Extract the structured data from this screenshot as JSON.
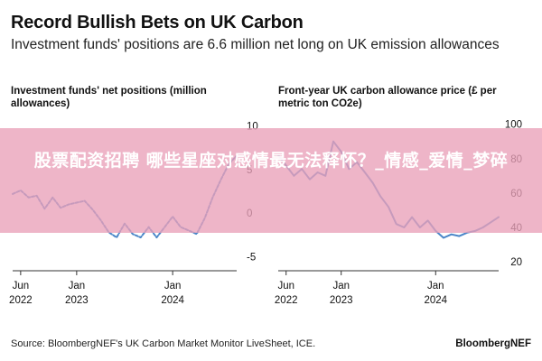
{
  "header": {
    "title": "Record Bullish Bets on UK Carbon",
    "subtitle": "Investment funds' positions are 6.6 million net long on UK emission allowances"
  },
  "banner": {
    "text": "股票配资招聘 哪些星座对感情最无法释怀？_情感_爱情_梦碎"
  },
  "footer": {
    "source": "Source: BloombergNEF's UK Carbon Market Monitor LiveSheet, ICE.",
    "brand": "BloombergNEF"
  },
  "colors": {
    "line": "#4a86c8",
    "axis": "#333333",
    "banner": "#e9a0b8"
  },
  "chart_data": [
    {
      "type": "line",
      "title": "Investment funds' net positions (million allowances)",
      "y_ticks": [
        10,
        5,
        0,
        -5
      ],
      "ylim": [
        -6,
        11
      ],
      "x_ticks": [
        {
          "line1": "Jun",
          "line2": "2022",
          "x": "2022-06"
        },
        {
          "line1": "Jan",
          "line2": "2023",
          "x": "2023-01"
        },
        {
          "line1": "Jan",
          "line2": "2024",
          "x": "2024-01"
        }
      ],
      "xlim": [
        "2022-05",
        "2024-09"
      ],
      "series": [
        {
          "style": "dotted",
          "x": [
            "2022-05",
            "2022-06",
            "2022-07",
            "2022-08",
            "2022-09",
            "2022-10",
            "2022-11",
            "2022-12",
            "2023-01",
            "2023-02",
            "2023-03",
            "2023-04",
            "2023-05",
            "2023-06",
            "2023-07",
            "2023-08",
            "2023-09",
            "2023-10",
            "2023-11",
            "2023-12",
            "2024-01",
            "2024-02",
            "2024-03",
            "2024-04",
            "2024-05",
            "2024-06",
            "2024-07",
            "2024-08",
            "2024-09"
          ],
          "values": [
            2.2,
            2.6,
            1.8,
            2.0,
            0.5,
            1.8,
            0.6,
            1.0,
            1.2,
            1.4,
            0.4,
            -0.8,
            -2.2,
            -2.8,
            -1.2,
            -2.4,
            -2.8,
            -1.6,
            -2.8,
            -1.6,
            -0.4,
            -1.6,
            -2.0,
            -2.4,
            -0.6,
            1.8,
            3.8,
            5.6,
            6.6
          ]
        }
      ]
    },
    {
      "type": "line",
      "title": "Front-year UK carbon allowance price (£ per metric ton CO2e)",
      "y_ticks": [
        100,
        80,
        60,
        40,
        20
      ],
      "ylim": [
        18,
        104
      ],
      "x_ticks": [
        {
          "line1": "Jun",
          "line2": "2022",
          "x": "2022-06"
        },
        {
          "line1": "Jan",
          "line2": "2023",
          "x": "2023-01"
        },
        {
          "line1": "Jan",
          "line2": "2024",
          "x": "2024-01"
        }
      ],
      "xlim": [
        "2022-05",
        "2024-09"
      ],
      "series": [
        {
          "style": "solid",
          "x": [
            "2022-05",
            "2022-06",
            "2022-07",
            "2022-08",
            "2022-09",
            "2022-10",
            "2022-11",
            "2022-12",
            "2023-01",
            "2023-02",
            "2023-03",
            "2023-04",
            "2023-05",
            "2023-06",
            "2023-07",
            "2023-08",
            "2023-09",
            "2023-10",
            "2023-11",
            "2023-12",
            "2024-01",
            "2024-02",
            "2024-03",
            "2024-04",
            "2024-05",
            "2024-06",
            "2024-07",
            "2024-08",
            "2024-09"
          ],
          "values": [
            82,
            76,
            70,
            74,
            68,
            72,
            70,
            90,
            84,
            74,
            78,
            72,
            66,
            58,
            52,
            42,
            40,
            46,
            40,
            44,
            38,
            34,
            36,
            35,
            37,
            38,
            40,
            43,
            46
          ]
        }
      ]
    }
  ]
}
